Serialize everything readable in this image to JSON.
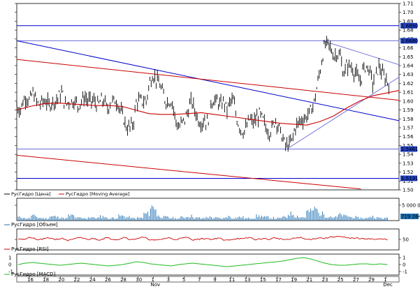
{
  "chart_data": [
    {
      "type": "candlestick",
      "panel": "price",
      "ylim": [
        1.5,
        1.71
      ],
      "y_ticks": [
        "1.71",
        "1.70",
        "1.69",
        "1.68",
        "1.67",
        "1.66",
        "1.65",
        "1.64",
        "1.63",
        "1.62",
        "1.61",
        "1.60",
        "1.59",
        "1.58",
        "1.57",
        "1.56",
        "1.55",
        "1.54",
        "1.53",
        "1.52",
        "1.51",
        "1.50"
      ],
      "x_tick_labels": [
        "16",
        "18",
        "20",
        "22",
        "24",
        "26",
        "28",
        "30",
        "1",
        "3",
        "5",
        "7",
        "9",
        "11",
        "13",
        "15",
        "17",
        "19",
        "21",
        "23",
        "25",
        "27",
        "29",
        "1"
      ],
      "month_labels": [
        "Nov",
        "Dec"
      ],
      "legend": [
        {
          "name": "РусГидро [Цена]",
          "color": "#000000"
        },
        {
          "name": "РусГидро [Moving Average]",
          "color": "#cc0000"
        }
      ],
      "series": [
        {
          "name": "РусГидро [Цена]",
          "x_range": [
            0,
            300
          ],
          "close_profile": [
            1.595,
            1.59,
            1.6,
            1.605,
            1.6,
            1.61,
            1.6,
            1.595,
            1.6,
            1.6,
            1.595,
            1.6,
            1.6,
            1.605,
            1.61,
            1.595,
            1.6,
            1.6,
            1.6,
            1.595,
            1.6,
            1.605,
            1.6,
            1.6,
            1.6,
            1.595,
            1.6,
            1.6,
            1.59,
            1.6,
            1.6,
            1.6,
            1.59,
            1.58,
            1.57,
            1.57,
            1.575,
            1.6,
            1.6,
            1.6,
            1.6,
            1.62,
            1.63,
            1.625,
            1.62,
            1.61,
            1.6,
            1.6,
            1.6,
            1.58,
            1.57,
            1.575,
            1.58,
            1.59,
            1.6,
            1.59,
            1.58,
            1.575,
            1.58,
            1.575,
            1.6,
            1.6,
            1.6,
            1.595,
            1.6,
            1.59,
            1.6,
            1.6,
            1.58,
            1.57,
            1.565,
            1.57,
            1.58,
            1.575,
            1.58,
            1.585,
            1.58,
            1.57,
            1.565,
            1.57,
            1.58,
            1.57,
            1.56,
            1.55,
            1.55,
            1.555,
            1.57,
            1.575,
            1.58,
            1.58,
            1.585,
            1.59,
            1.6,
            1.62,
            1.64,
            1.66,
            1.665,
            1.66,
            1.65,
            1.655,
            1.65,
            1.63,
            1.64,
            1.64,
            1.635,
            1.63,
            1.62,
            1.635,
            1.64,
            1.635,
            1.62,
            1.63,
            1.64,
            1.63,
            1.625,
            1.62
          ]
        },
        {
          "name": "РусГидро [Moving Average]",
          "x_range": [
            0,
            300
          ],
          "profile": [
            1.59,
            1.594,
            1.597,
            1.598,
            1.597,
            1.596,
            1.595,
            1.595,
            1.594,
            1.59,
            1.586,
            1.585,
            1.585,
            1.586,
            1.587,
            1.585,
            1.583,
            1.581,
            1.579,
            1.577,
            1.575,
            1.574,
            1.573,
            1.577,
            1.583,
            1.592,
            1.6,
            1.606,
            1.609,
            1.612
          ]
        }
      ],
      "horizontal_levels": [
        {
          "value": 1.685,
          "label": "1.6850",
          "color": "#0000cc"
        },
        {
          "value": 1.668,
          "label": "1.6680",
          "color": "#6b6bd6"
        },
        {
          "value": 1.546,
          "label": "1.5461",
          "color": "#6b6bd6"
        },
        {
          "value": 1.513,
          "label": "1.5131",
          "color": "#0000cc"
        }
      ],
      "trendlines": [
        {
          "color": "#0000cc",
          "from": [
            0,
            1.668
          ],
          "to": [
            300,
            1.578
          ]
        },
        {
          "color": "#cc0000",
          "from": [
            0,
            1.647
          ],
          "to": [
            300,
            1.601
          ]
        },
        {
          "color": "#cc0000",
          "from": [
            0,
            1.539
          ],
          "to": [
            270,
            1.501
          ]
        }
      ],
      "channel": {
        "color": "#6b6bd6",
        "upper": {
          "from": [
            240,
            1.668
          ],
          "to": [
            300,
            1.641
          ]
        },
        "lower": {
          "from": [
            212,
            1.546
          ],
          "to": [
            300,
            1.627
          ]
        }
      }
    },
    {
      "type": "bar",
      "panel": "volume",
      "legend": [
        {
          "name": "РусГидро [Объем]",
          "color": "#1f6fb0"
        }
      ],
      "y_ticks": [
        "5 000 000"
      ],
      "last_value_label": "719 264",
      "volume_profile": [
        0.15,
        0.1,
        0.2,
        0.12,
        0.1,
        0.18,
        0.15,
        0.1,
        0.22,
        0.12,
        0.1,
        0.15,
        0.12,
        0.18,
        0.1,
        0.12,
        0.2,
        0.15,
        0.1,
        0.12,
        0.3,
        0.6,
        0.2,
        0.15,
        0.12,
        0.1,
        0.15,
        0.2,
        0.12,
        0.1,
        0.15,
        0.12,
        0.1,
        0.18,
        0.12,
        0.15,
        0.1,
        0.12,
        0.2,
        0.15,
        0.12,
        0.1,
        0.15,
        0.3,
        0.2,
        0.15,
        0.4,
        0.5,
        0.3,
        0.2,
        0.15,
        0.25,
        0.2,
        0.15,
        0.12,
        0.1,
        0.18,
        0.12,
        0.1,
        0.15
      ]
    },
    {
      "type": "line",
      "panel": "rsi",
      "legend": [
        {
          "name": "РусГидро [RSI]",
          "color": "#cc0000"
        }
      ],
      "y_ticks": [
        "50"
      ],
      "ylim": [
        0,
        100
      ],
      "values": [
        55,
        50,
        60,
        48,
        52,
        58,
        50,
        55,
        45,
        52,
        60,
        50,
        55,
        48,
        58,
        52,
        50,
        62,
        48,
        55,
        60,
        50,
        45,
        52,
        58,
        50,
        55,
        60,
        48,
        52,
        55,
        50,
        58,
        45,
        50,
        55,
        52,
        60,
        48,
        55,
        50,
        58,
        52,
        48,
        55,
        60,
        50,
        52,
        58,
        55,
        62,
        65,
        60,
        55,
        58,
        52,
        55,
        50,
        52,
        50
      ]
    },
    {
      "type": "line",
      "panel": "macd",
      "legend": [
        {
          "name": "РусГидро [MACD]",
          "color": "#22bb22"
        }
      ],
      "y_ticks": [
        "1",
        "0",
        "-1"
      ],
      "ylim": [
        -1.5,
        1.5
      ],
      "values": [
        0,
        0.2,
        0.3,
        0.2,
        0.1,
        0,
        -0.1,
        0,
        0.1,
        0.2,
        0.1,
        0,
        -0.1,
        -0.2,
        -0.1,
        0,
        0.2,
        0.4,
        0.3,
        0.1,
        0,
        -0.1,
        -0.2,
        0,
        0.1,
        0.2,
        0.1,
        0,
        -0.1,
        -0.2,
        -0.3,
        -0.2,
        -0.1,
        0,
        0.1,
        0.2,
        0.3,
        0.4,
        0.5,
        0.7,
        0.9,
        1.0,
        0.8,
        0.5,
        0.2,
        0,
        -0.1,
        -0.1,
        0,
        0.1,
        0.1,
        0,
        0.1,
        0
      ]
    }
  ]
}
